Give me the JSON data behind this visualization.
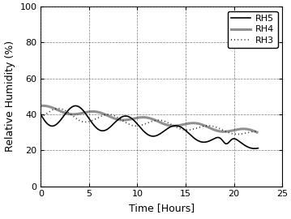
{
  "title": "",
  "xlabel": "Time [Hours]",
  "ylabel": "Relative Humidity (%)",
  "xlim": [
    0,
    25
  ],
  "ylim": [
    0,
    100
  ],
  "xticks": [
    0,
    5,
    10,
    15,
    20,
    25
  ],
  "yticks": [
    0,
    20,
    40,
    60,
    80,
    100
  ],
  "rh5_color": "#000000",
  "rh4_color": "#909090",
  "rh3_color": "#000000",
  "rh5_lw": 1.2,
  "rh4_lw": 2.2,
  "rh3_lw": 1.2,
  "legend_fontsize": 8,
  "axis_fontsize": 9,
  "tick_fontsize": 8,
  "figsize": [
    3.59,
    2.7
  ],
  "dpi": 100
}
